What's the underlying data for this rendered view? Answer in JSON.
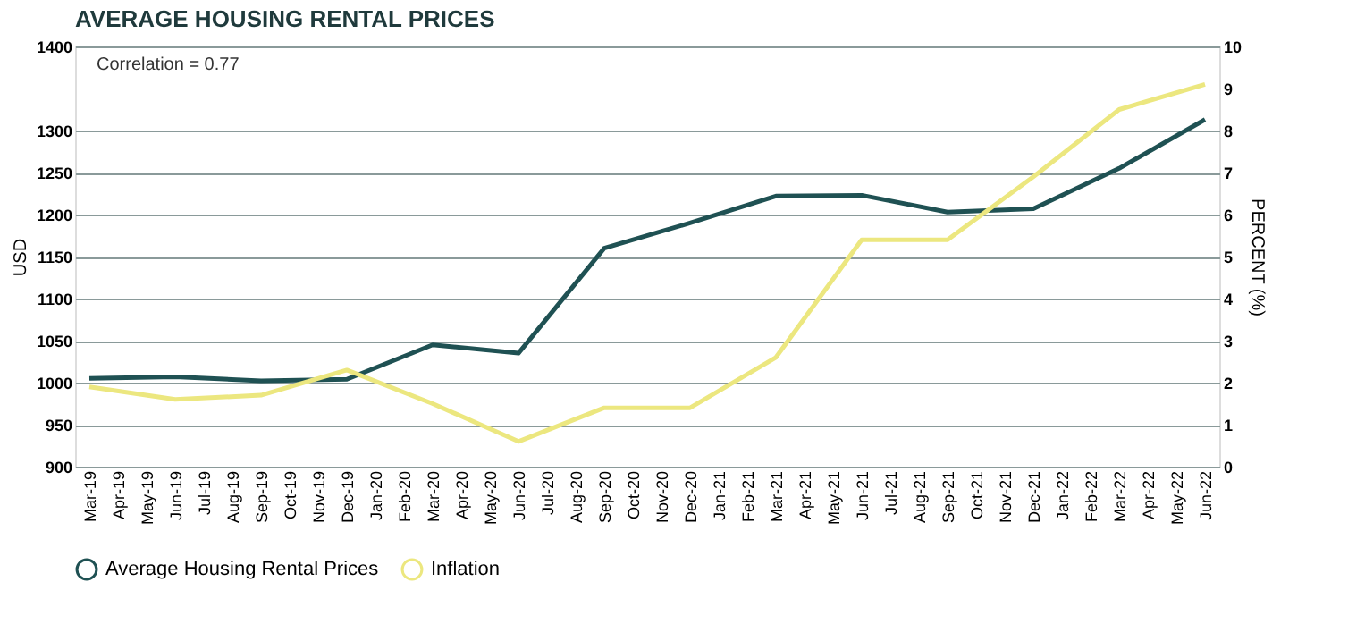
{
  "chart_data": {
    "type": "line",
    "title": "AVERAGE HOUSING RENTAL PRICES",
    "ylabel": "USD",
    "y2label": "PERCENT (%)",
    "categories": [
      "Mar-19",
      "Apr-19",
      "May-19",
      "Jun-19",
      "Jul-19",
      "Aug-19",
      "Sep-19",
      "Oct-19",
      "Nov-19",
      "Dec-19",
      "Jan-20",
      "Feb-20",
      "Mar-20",
      "Apr-20",
      "May-20",
      "Jun-20",
      "Jul-20",
      "Aug-20",
      "Sep-20",
      "Oct-20",
      "Nov-20",
      "Dec-20",
      "Jan-21",
      "Feb-21",
      "Mar-21",
      "Apr-21",
      "May-21",
      "Jun-21",
      "Jul-21",
      "Aug-21",
      "Sep-21",
      "Oct-21",
      "Nov-21",
      "Dec-21",
      "Jan-22",
      "Feb-22",
      "Mar-22",
      "Apr-22",
      "May-22",
      "Jun-22"
    ],
    "series": [
      {
        "name": "Average Housing Rental Prices",
        "color": "#1f5153",
        "axis": "y",
        "values": [
          1005,
          null,
          null,
          1007,
          null,
          null,
          1002,
          null,
          null,
          1004,
          null,
          null,
          1045,
          null,
          null,
          1035,
          null,
          null,
          1160,
          null,
          null,
          1190,
          null,
          null,
          1222,
          null,
          null,
          1223,
          null,
          null,
          1203,
          null,
          null,
          1207,
          null,
          null,
          1255,
          null,
          null,
          1313
        ]
      },
      {
        "name": "Inflation",
        "color": "#ece77f",
        "axis": "y2",
        "values": [
          1.9,
          null,
          null,
          1.6,
          null,
          null,
          1.7,
          null,
          null,
          2.3,
          null,
          null,
          1.5,
          null,
          null,
          0.6,
          null,
          null,
          1.4,
          null,
          null,
          1.4,
          null,
          null,
          2.6,
          null,
          null,
          5.4,
          null,
          null,
          5.4,
          null,
          null,
          6.9,
          null,
          null,
          8.5,
          null,
          null,
          9.1
        ]
      }
    ],
    "ylim": [
      900,
      1400
    ],
    "yticks": [
      900,
      950,
      1000,
      1050,
      1100,
      1150,
      1200,
      1250,
      1300,
      1400
    ],
    "y2lim": [
      0,
      10
    ],
    "y2ticks": [
      0,
      1,
      2,
      3,
      4,
      5,
      6,
      7,
      8,
      9,
      10
    ],
    "annotations": [
      "Correlation = 0.77"
    ],
    "grid": "y",
    "legend": "bottom",
    "marker": "none",
    "line_style": "solid"
  }
}
